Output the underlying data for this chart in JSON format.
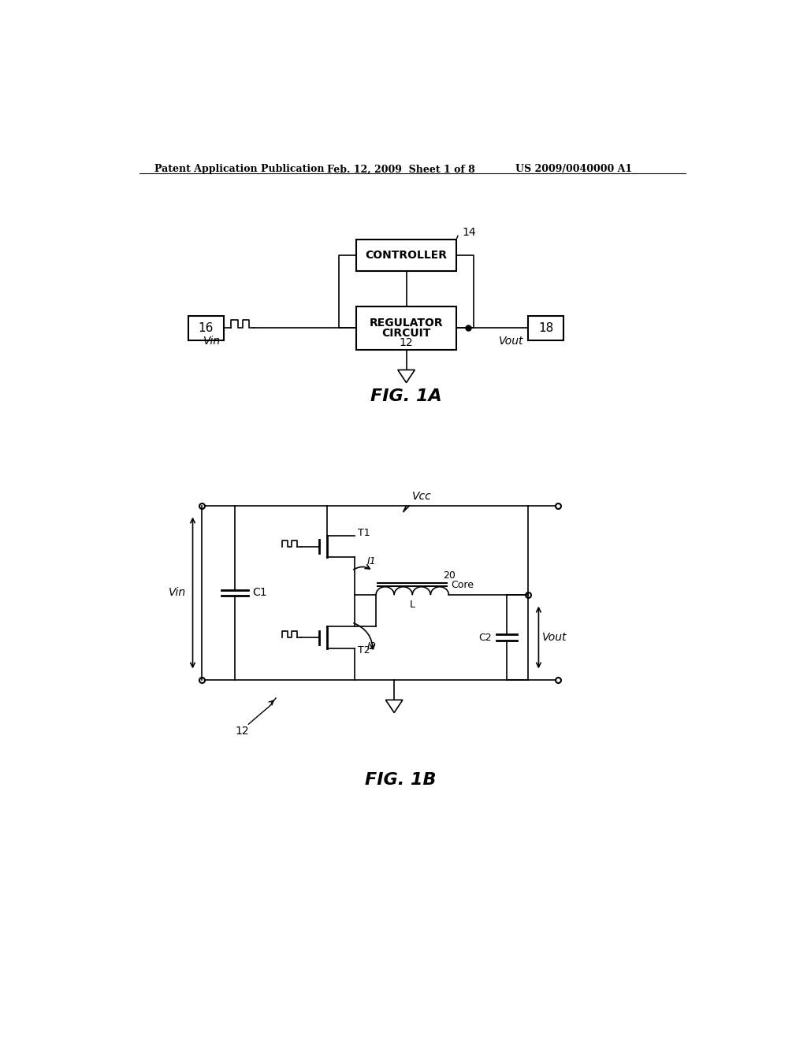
{
  "bg_color": "#ffffff",
  "text_color": "#000000",
  "line_color": "#000000",
  "header_left": "Patent Application Publication",
  "header_mid": "Feb. 12, 2009  Sheet 1 of 8",
  "header_right": "US 2009/0040000 A1",
  "fig1a_label": "FIG. 1A",
  "fig1b_label": "FIG. 1B",
  "controller_text": "CONTROLLER",
  "regulator_text1": "REGULATOR",
  "regulator_text2": "CIRCUIT",
  "regulator_num": "12",
  "controller_num": "14",
  "box16": "16",
  "box18": "18",
  "vin_label": "Vin",
  "vout_label": "Vout",
  "vcc_label": "Vcc",
  "vin_label2": "Vin",
  "t1_label": "T1",
  "t2_label": "T2",
  "i1_label": "I1",
  "i2_label": "I2",
  "c1_label": "C1",
  "c2_label": "C2",
  "l_label": "L",
  "core_label": "Core",
  "num20": "20",
  "num12b": "12"
}
